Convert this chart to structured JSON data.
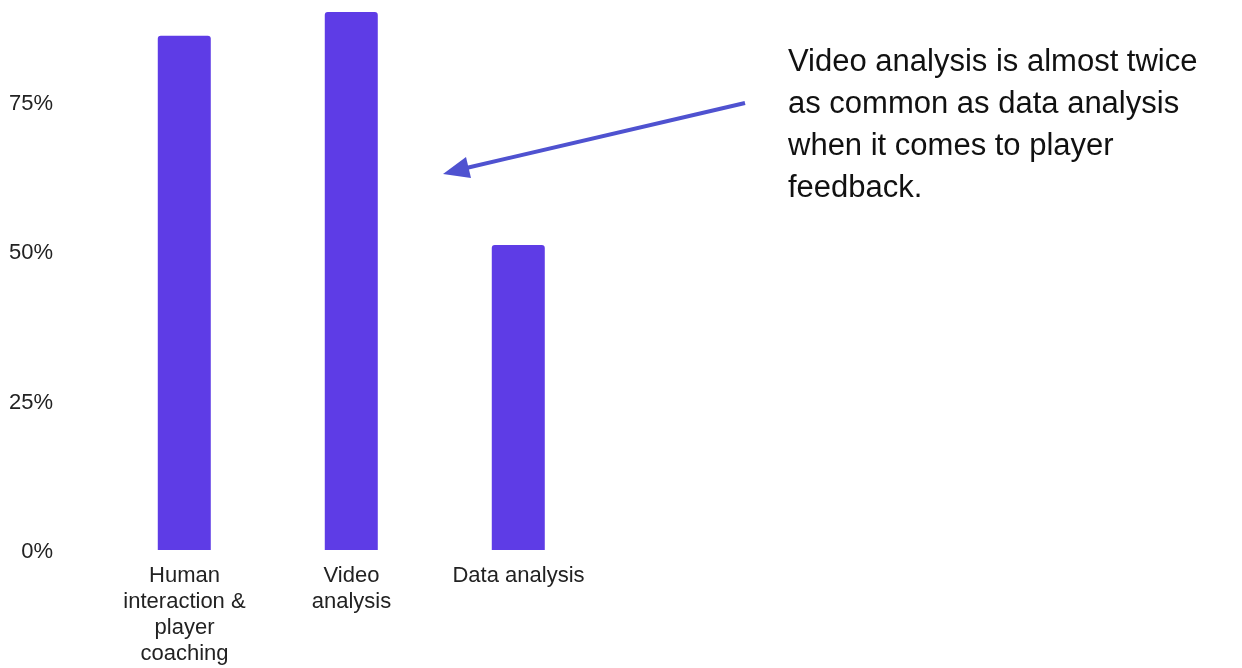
{
  "chart_data": {
    "type": "bar",
    "categories": [
      "Human interaction & player coaching",
      "Video analysis",
      "Data analysis"
    ],
    "values": [
      86,
      90,
      51
    ],
    "color": "#5e3ce6",
    "ylim": [
      0,
      92
    ],
    "yticks": [
      {
        "value": 0,
        "label": "0%"
      },
      {
        "value": 25,
        "label": "25%"
      },
      {
        "value": 50,
        "label": "50%"
      },
      {
        "value": 75,
        "label": "75%"
      }
    ],
    "annotations": [
      "Video analysis is almost twice as common as data analysis when it comes to player feedback."
    ]
  }
}
